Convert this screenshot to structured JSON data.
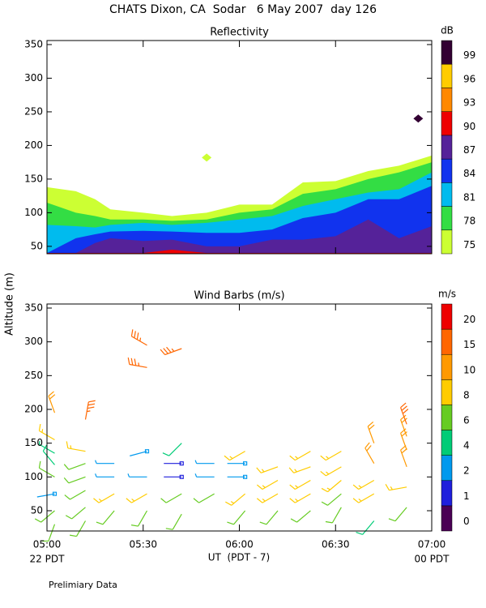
{
  "title": "CHATS Dixon, CA  Sodar   6 May 2007  day 126",
  "y_label": "Altitude (m)",
  "x_label": "UT  (PDT - 7)",
  "left_note": "22 PDT",
  "right_note": "00 PDT",
  "footer": "Prelimiary Data",
  "chart_data": [
    {
      "type": "contour",
      "title": "Reflectivity",
      "xlim": [
        5,
        7
      ],
      "xticks": [
        5,
        5.5,
        6,
        6.5,
        7
      ],
      "ylim": [
        39,
        356
      ],
      "yticks": [
        50,
        100,
        150,
        200,
        250,
        300,
        350
      ],
      "colorbar_label": "dB",
      "levels": [
        75,
        78,
        81,
        84,
        87,
        90,
        93,
        96,
        99
      ],
      "colors": [
        "#ccff33",
        "#33dd44",
        "#00bbee",
        "#1133ee",
        "#552299",
        "#ee0000",
        "#ff8800",
        "#ffcc00",
        "#330033"
      ],
      "x": [
        5.0,
        5.15,
        5.25,
        5.33,
        5.5,
        5.65,
        5.83,
        6.0,
        6.17,
        6.33,
        6.5,
        6.67,
        6.83,
        7.0
      ],
      "tops": [
        [
          138,
          132,
          120,
          105,
          100,
          95,
          100,
          112,
          112,
          145,
          147,
          162,
          170,
          185
        ],
        [
          115,
          100,
          95,
          90,
          90,
          88,
          90,
          100,
          105,
          128,
          135,
          150,
          160,
          175
        ],
        [
          82,
          80,
          78,
          82,
          85,
          82,
          85,
          90,
          95,
          110,
          120,
          130,
          135,
          160
        ],
        [
          40,
          62,
          68,
          72,
          73,
          72,
          70,
          70,
          75,
          92,
          100,
          120,
          120,
          140
        ],
        [
          40,
          40,
          55,
          62,
          58,
          60,
          50,
          50,
          60,
          60,
          65,
          90,
          62,
          80
        ],
        [
          40,
          40,
          40,
          40,
          40,
          45,
          40,
          40,
          40,
          40,
          40,
          40,
          40,
          40
        ]
      ],
      "spots": {
        "x": [
          5.83,
          6.93
        ],
        "y": [
          182,
          240
        ],
        "values": [
          75,
          99
        ]
      }
    },
    {
      "type": "barbs",
      "title": "Wind Barbs (m/s)",
      "xlim": [
        5,
        7
      ],
      "xticks": [
        {
          "value": 5,
          "label": "05:00"
        },
        {
          "value": 5.5,
          "label": "05:30"
        },
        {
          "value": 6,
          "label": "06:00"
        },
        {
          "value": 6.5,
          "label": "06:30"
        },
        {
          "value": 7,
          "label": "07:00"
        }
      ],
      "ylim": [
        20,
        356
      ],
      "yticks": [
        50,
        100,
        150,
        200,
        250,
        300,
        350
      ],
      "colorbar_label": "m/s",
      "levels": [
        0,
        1,
        2,
        4,
        6,
        8,
        10,
        15,
        20
      ],
      "colors": [
        "#4b0055",
        "#1f1fdc",
        "#0099ee",
        "#00cc77",
        "#66cc22",
        "#ffcc00",
        "#ff9900",
        "#ff6600",
        "#ee0000"
      ],
      "x": [
        5.04,
        5.04,
        5.04,
        5.04,
        5.04,
        5.04,
        5.04,
        5.04,
        5.2,
        5.2,
        5.2,
        5.2,
        5.2,
        5.2,
        5.2,
        5.35,
        5.35,
        5.35,
        5.35,
        5.52,
        5.52,
        5.52,
        5.52,
        5.52,
        5.52,
        5.7,
        5.7,
        5.7,
        5.7,
        5.7,
        5.7,
        5.87,
        5.87,
        5.87,
        6.03,
        6.03,
        6.03,
        6.03,
        6.03,
        6.2,
        6.2,
        6.2,
        6.2,
        6.37,
        6.37,
        6.37,
        6.37,
        6.37,
        6.53,
        6.53,
        6.53,
        6.53,
        6.53,
        6.7,
        6.7,
        6.7,
        6.7,
        6.7,
        6.87,
        6.87,
        6.87,
        6.87,
        6.87,
        6.87
      ],
      "y": [
        30,
        50,
        75,
        100,
        118,
        135,
        155,
        195,
        35,
        55,
        80,
        100,
        120,
        138,
        185,
        50,
        75,
        100,
        120,
        50,
        75,
        100,
        138,
        295,
        262,
        45,
        75,
        100,
        120,
        150,
        290,
        75,
        100,
        120,
        50,
        75,
        100,
        120,
        138,
        50,
        75,
        95,
        115,
        50,
        75,
        95,
        115,
        138,
        55,
        75,
        95,
        115,
        138,
        35,
        75,
        95,
        120,
        150,
        55,
        85,
        115,
        140,
        160,
        178
      ],
      "speed": [
        6,
        7,
        2,
        7,
        5,
        4,
        9,
        10,
        6,
        7,
        6,
        6,
        6,
        9,
        18,
        6,
        8,
        3,
        3,
        6,
        8,
        3,
        2,
        18,
        18,
        6,
        7,
        1,
        1,
        5,
        18,
        7,
        3,
        3,
        7,
        8,
        2,
        2,
        9,
        7,
        8,
        8,
        9,
        7,
        8,
        8,
        9,
        9,
        6,
        7,
        8,
        9,
        9,
        5,
        8,
        9,
        10,
        12,
        6,
        9,
        10,
        12,
        12,
        15
      ],
      "direction": [
        200,
        230,
        260,
        300,
        320,
        300,
        300,
        340,
        210,
        230,
        240,
        250,
        250,
        280,
        10,
        220,
        240,
        270,
        270,
        210,
        240,
        270,
        255,
        300,
        280,
        210,
        240,
        270,
        270,
        225,
        250,
        240,
        270,
        270,
        220,
        230,
        270,
        270,
        240,
        220,
        240,
        240,
        250,
        230,
        240,
        240,
        250,
        240,
        210,
        230,
        230,
        240,
        240,
        220,
        240,
        240,
        330,
        340,
        220,
        260,
        340,
        340,
        340,
        340
      ]
    }
  ]
}
